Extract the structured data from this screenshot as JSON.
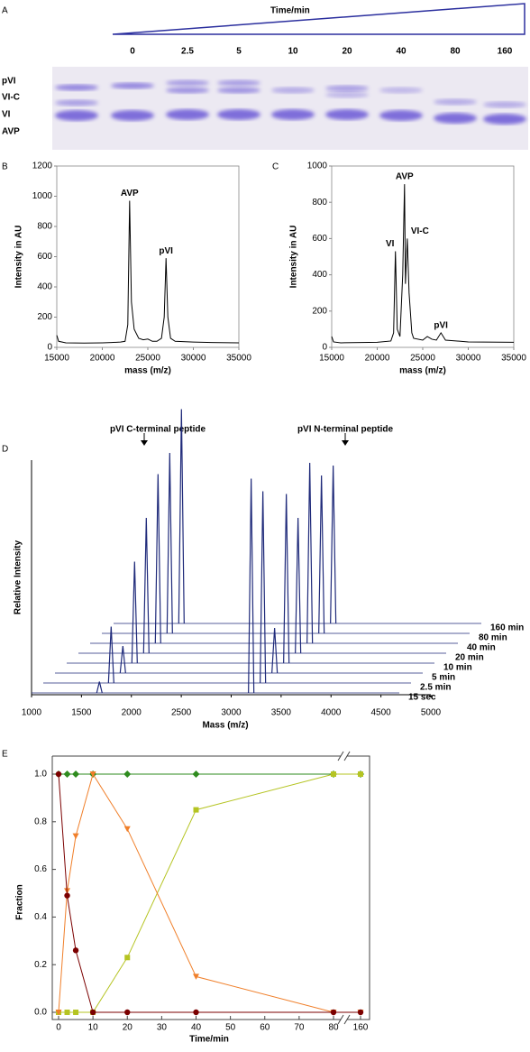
{
  "chart_data": [
    {
      "type": "gel",
      "label": "A",
      "title": "Time/min",
      "categories": [
        "0",
        "2.5",
        "5",
        "10",
        "20",
        "40",
        "80",
        "160"
      ],
      "band_labels": [
        "pVI",
        "VI-C",
        "VI",
        "AVP"
      ]
    },
    {
      "type": "line",
      "label": "B",
      "xlabel": "mass (m/z)",
      "ylabel": "Intensity in AU",
      "color": "#000000",
      "x": [
        15000,
        15200,
        16000,
        18000,
        20000,
        21000,
        22000,
        22500,
        22800,
        23000,
        23200,
        23500,
        24000,
        24500,
        25000,
        25500,
        26000,
        26500,
        26800,
        27000,
        27200,
        27500,
        28000,
        30000,
        32000,
        35000
      ],
      "values": [
        80,
        40,
        30,
        28,
        30,
        32,
        35,
        40,
        150,
        970,
        300,
        120,
        60,
        50,
        55,
        40,
        40,
        60,
        200,
        590,
        200,
        60,
        40,
        35,
        32,
        30
      ],
      "xlim": [
        15000,
        35000
      ],
      "xticks": [
        15000,
        20000,
        25000,
        30000,
        35000
      ],
      "ylim": [
        0,
        1200
      ],
      "yticks": [
        0,
        200,
        400,
        600,
        800,
        1000,
        1200
      ],
      "annotations": [
        {
          "text": "AVP",
          "x": 23000,
          "y": 970
        },
        {
          "text": "pVI",
          "x": 27000,
          "y": 590
        }
      ]
    },
    {
      "type": "line",
      "label": "C",
      "xlabel": "mass (m/z)",
      "ylabel": "Intensity in AU",
      "color": "#000000",
      "x": [
        15000,
        15200,
        16000,
        20000,
        21500,
        21800,
        22000,
        22200,
        22500,
        22800,
        23000,
        23100,
        23300,
        23500,
        23800,
        24000,
        25000,
        25500,
        26000,
        26500,
        27000,
        27500,
        30000,
        35000
      ],
      "values": [
        60,
        30,
        25,
        28,
        35,
        80,
        530,
        100,
        60,
        400,
        900,
        350,
        600,
        300,
        80,
        50,
        40,
        60,
        45,
        40,
        80,
        40,
        30,
        28
      ],
      "xlim": [
        15000,
        35000
      ],
      "xticks": [
        15000,
        20000,
        25000,
        30000,
        35000
      ],
      "ylim": [
        0,
        1000
      ],
      "yticks": [
        0,
        200,
        400,
        600,
        800,
        1000
      ],
      "annotations": [
        {
          "text": "VI",
          "x": 22000,
          "y": 530
        },
        {
          "text": "AVP",
          "x": 23000,
          "y": 900
        },
        {
          "text": "VI-C",
          "x": 23300,
          "y": 600
        },
        {
          "text": "pVI",
          "x": 27000,
          "y": 80
        }
      ]
    },
    {
      "type": "waterfall",
      "label": "D",
      "xlabel": "Mass (m/z)",
      "ylabel": "Relative Intensity",
      "color": "#1f2a7a",
      "annotations": [
        "pVI C-terminal peptide",
        "pVI N-terminal peptide"
      ],
      "xlim": [
        1000,
        5000
      ],
      "xticks": [
        1000,
        1500,
        2000,
        2500,
        3000,
        3500,
        4000,
        4500,
        5000
      ],
      "peak_x": [
        1680,
        3200
      ],
      "series": [
        {
          "name": "15 sec",
          "values": [
            0.05,
            0.95
          ]
        },
        {
          "name": "2.5 min",
          "values": [
            0.25,
            0.85
          ]
        },
        {
          "name": "5 min",
          "values": [
            0.12,
            0.2
          ]
        },
        {
          "name": "10 min",
          "values": [
            0.45,
            0.75
          ]
        },
        {
          "name": "20 min",
          "values": [
            0.6,
            0.6
          ]
        },
        {
          "name": "40 min",
          "values": [
            0.75,
            0.8
          ]
        },
        {
          "name": "80 min",
          "values": [
            0.8,
            0.7
          ]
        },
        {
          "name": "160 min",
          "values": [
            0.95,
            0.7
          ]
        }
      ]
    },
    {
      "type": "markerline",
      "label": "E",
      "xlabel": "Time/min",
      "ylabel": "Fraction",
      "axis_break": true,
      "x": [
        0,
        2.5,
        5,
        10,
        20,
        40,
        80,
        160
      ],
      "xlim": [
        0,
        160
      ],
      "xticks": [
        0,
        10,
        20,
        30,
        40,
        50,
        60,
        70,
        80,
        160
      ],
      "ylim": [
        0,
        1
      ],
      "yticks": [
        {
          "value": 0,
          "label": "0.0"
        },
        0.2,
        0.4,
        0.6,
        0.8,
        {
          "value": 1,
          "label": "1.0"
        }
      ],
      "series": [
        {
          "color": "#2e8b1e",
          "marker": "diamond",
          "values": [
            1,
            1,
            1,
            1,
            1,
            1,
            1,
            1
          ]
        },
        {
          "color": "#b5c422",
          "marker": "square",
          "values": [
            0,
            0,
            0,
            0,
            0.23,
            0.85,
            1,
            1
          ]
        },
        {
          "color": "#f07f2a",
          "marker": "triangle",
          "values": [
            0,
            0.51,
            0.74,
            1,
            0.77,
            0.15,
            0,
            0
          ]
        },
        {
          "color": "#7b0000",
          "marker": "circle",
          "values": [
            1,
            0.49,
            0.26,
            0,
            0,
            0,
            0,
            0
          ]
        }
      ]
    }
  ]
}
